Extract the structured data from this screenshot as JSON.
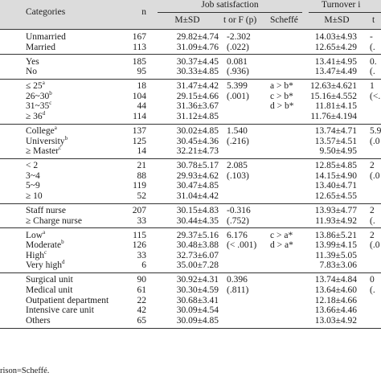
{
  "header": {
    "col_categories": "Categories",
    "col_n": "n",
    "job_satisfaction": "Job satisfaction",
    "turnover_intention": "Turnover i",
    "msd": "M±SD",
    "t_or_f_p": "t or F (p)",
    "scheffe": "Scheffé",
    "msd2": "M±SD",
    "t_cut": "t"
  },
  "groups": [
    {
      "rows": [
        {
          "cat": "Unmarried",
          "sup": "",
          "n": "167",
          "js": "29.82±4.74",
          "tf": "-2.302",
          "sch": "",
          "ti": "14.03±4.93",
          "tf2": "-"
        },
        {
          "cat": "Married",
          "sup": "",
          "n": "113",
          "js": "31.09±4.76",
          "tf": "(.022)",
          "sch": "",
          "ti": "12.65±4.29",
          "tf2": "(."
        }
      ]
    },
    {
      "rows": [
        {
          "cat": "Yes",
          "sup": "",
          "n": "185",
          "js": "30.37±4.45",
          "tf": "0.081",
          "sch": "",
          "ti": "13.41±4.95",
          "tf2": "0."
        },
        {
          "cat": "No",
          "sup": "",
          "n": "95",
          "js": "30.33±4.85",
          "tf": "(.936)",
          "sch": "",
          "ti": "13.47±4.49",
          "tf2": "(."
        }
      ]
    },
    {
      "rows": [
        {
          "cat": "≤ 25",
          "sup": "a",
          "n": "18",
          "js": "31.47±4.42",
          "tf": "5.399",
          "sch": "a > b*",
          "ti": "12.63±4.621",
          "tf2": "1"
        },
        {
          "cat": "26~30",
          "sup": "b",
          "n": "104",
          "js": "29.15±4.66",
          "tf": "(.001)",
          "sch": "c > b*",
          "ti": "15.16±4.552",
          "tf2": "(<."
        },
        {
          "cat": "31~35",
          "sup": "c",
          "n": "44",
          "js": "31.36±3.67",
          "tf": "",
          "sch": "d > b*",
          "ti": "11.81±4.15",
          "tf2": ""
        },
        {
          "cat": "≥ 36",
          "sup": "d",
          "n": "114",
          "js": "31.12±4.85",
          "tf": "",
          "sch": "",
          "ti": "11.76±4.194",
          "tf2": ""
        }
      ]
    },
    {
      "rows": [
        {
          "cat": "College",
          "sup": "a",
          "n": "137",
          "js": "30.02±4.85",
          "tf": "1.540",
          "sch": "",
          "ti": "13.74±4.71",
          "tf2": "5.9"
        },
        {
          "cat": "University",
          "sup": "b",
          "n": "125",
          "js": "30.45±4.36",
          "tf": "(.216)",
          "sch": "",
          "ti": "13.57±4.51",
          "tf2": "(.0"
        },
        {
          "cat": "≥ Master",
          "sup": "c",
          "n": "14",
          "js": "32.21±4.73",
          "tf": "",
          "sch": "",
          "ti": "9.50±4.95",
          "tf2": ""
        }
      ]
    },
    {
      "rows": [
        {
          "cat": "< 2",
          "sup": "",
          "n": "21",
          "js": "30.78±5.17",
          "tf": "2.085",
          "sch": "",
          "ti": "12.85±4.85",
          "tf2": "2"
        },
        {
          "cat": "3~4",
          "sup": "",
          "n": "88",
          "js": "29.93±4.62",
          "tf": "(.103)",
          "sch": "",
          "ti": "14.15±4.90",
          "tf2": "(.0"
        },
        {
          "cat": "5~9",
          "sup": "",
          "n": "119",
          "js": "30.47±4.85",
          "tf": "",
          "sch": "",
          "ti": "13.40±4.71",
          "tf2": ""
        },
        {
          "cat": "≥ 10",
          "sup": "",
          "n": "52",
          "js": "31.04±4.42",
          "tf": "",
          "sch": "",
          "ti": "12.65±4.55",
          "tf2": ""
        }
      ]
    },
    {
      "rows": [
        {
          "cat": "Staff nurse",
          "sup": "",
          "n": "207",
          "js": "30.15±4.83",
          "tf": "-0.316",
          "sch": "",
          "ti": "13.93±4.77",
          "tf2": "2"
        },
        {
          "cat": "≥ Charge nurse",
          "sup": "",
          "n": "33",
          "js": "30.44±4.35",
          "tf": "(.752)",
          "sch": "",
          "ti": "11.93±4.92",
          "tf2": "(."
        }
      ]
    },
    {
      "rows": [
        {
          "cat": "Low",
          "sup": "a",
          "n": "115",
          "js": "29.37±5.16",
          "tf": "6.176",
          "sch": "c > a*",
          "ti": "13.86±5.21",
          "tf2": "2"
        },
        {
          "cat": "Moderate",
          "sup": "b",
          "n": "126",
          "js": "30.48±3.88",
          "tf": "(< .001)",
          "sch": "d > a*",
          "ti": "13.99±4.15",
          "tf2": "(.0"
        },
        {
          "cat": "High",
          "sup": "c",
          "n": "33",
          "js": "32.73±6.07",
          "tf": "",
          "sch": "",
          "ti": "11.39±5.05",
          "tf2": ""
        },
        {
          "cat": "Very high",
          "sup": "d",
          "n": "6",
          "js": "35.00±7.28",
          "tf": "",
          "sch": "",
          "ti": "7.83±3.06",
          "tf2": ""
        }
      ]
    },
    {
      "rows": [
        {
          "cat": "Surgical unit",
          "sup": "",
          "n": "90",
          "js": "30.92±4.31",
          "tf": "0.396",
          "sch": "",
          "ti": "13.74±4.84",
          "tf2": "0"
        },
        {
          "cat": "Medical unit",
          "sup": "",
          "n": "61",
          "js": "30.30±4.59",
          "tf": "(.811)",
          "sch": "",
          "ti": "13.64±4.60",
          "tf2": "(."
        },
        {
          "cat": "Outpatient department",
          "sup": "",
          "n": "22",
          "js": "30.68±3.41",
          "tf": "",
          "sch": "",
          "ti": "12.18±4.66",
          "tf2": ""
        },
        {
          "cat": "Intensive care unit",
          "sup": "",
          "n": "42",
          "js": "30.09±4.54",
          "tf": "",
          "sch": "",
          "ti": "13.66±4.46",
          "tf2": ""
        },
        {
          "cat": "Others",
          "sup": "",
          "n": "65",
          "js": "30.09±4.85",
          "tf": "",
          "sch": "",
          "ti": "13.03±4.92",
          "tf2": ""
        }
      ]
    }
  ],
  "footnote": "rison=Scheffé."
}
